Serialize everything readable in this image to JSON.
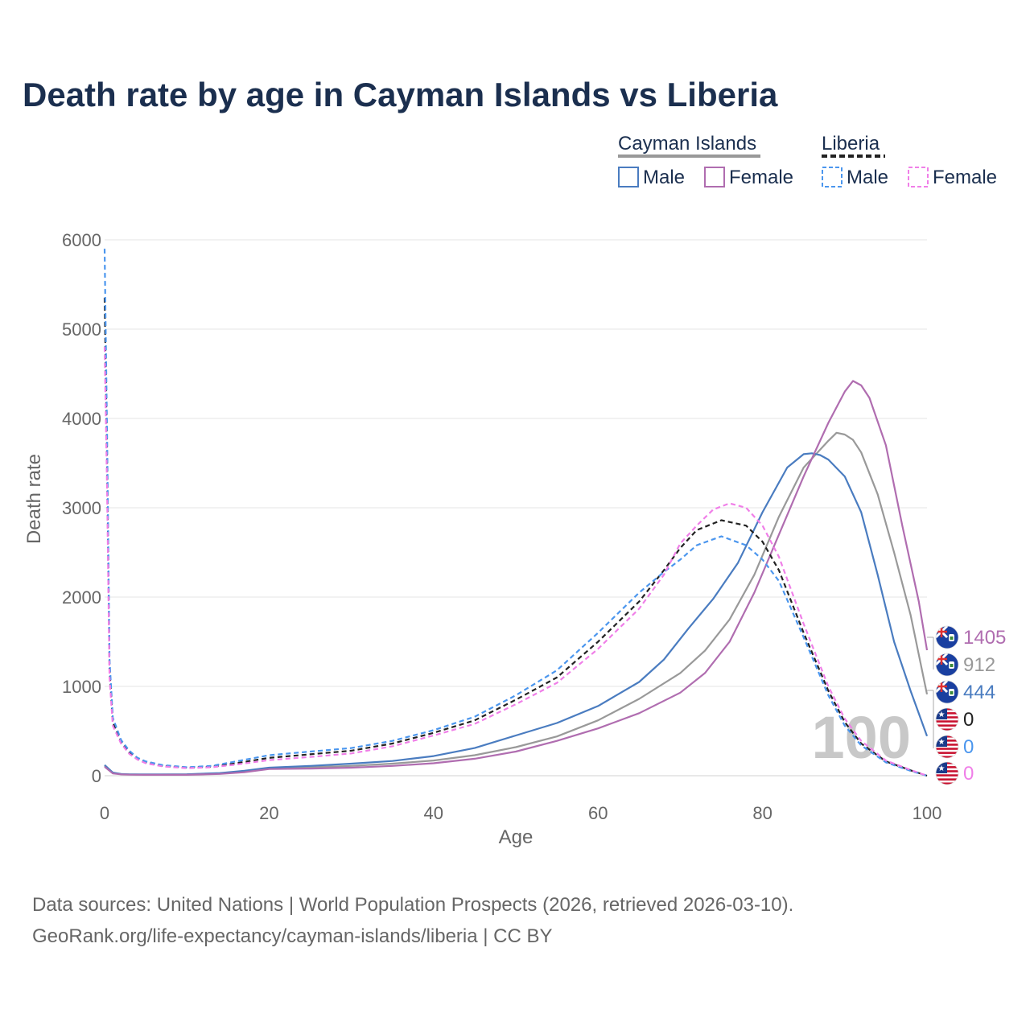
{
  "chart_data": {
    "type": "line",
    "title": "Death rate by age in Cayman Islands vs Liberia",
    "xlabel": "Age",
    "ylabel": "Death rate",
    "xlim": [
      0,
      100
    ],
    "ylim": [
      0,
      6000
    ],
    "xticks": [
      0,
      20,
      40,
      60,
      80,
      100
    ],
    "yticks": [
      0,
      1000,
      2000,
      3000,
      4000,
      5000,
      6000
    ],
    "grid": true,
    "legend_position": "top-right",
    "legend_groups": [
      {
        "label": "Cayman Islands",
        "style": "solid",
        "color": "#999999",
        "items": [
          {
            "label": "Male",
            "color": "#4a7cc0",
            "dashed": false
          },
          {
            "label": "Female",
            "color": "#b06db0",
            "dashed": false
          }
        ]
      },
      {
        "label": "Liberia",
        "style": "dashed",
        "color": "#222222",
        "items": [
          {
            "label": "Male",
            "color": "#4b96ee",
            "dashed": true
          },
          {
            "label": "Female",
            "color": "#f07fe8",
            "dashed": true
          }
        ]
      }
    ],
    "watermark": "100",
    "series": [
      {
        "name": "Cayman Islands Total",
        "country": "Cayman Islands",
        "color": "#999999",
        "dashed": false,
        "end_label": "912",
        "points": [
          [
            0,
            110
          ],
          [
            1,
            30
          ],
          [
            2,
            18
          ],
          [
            3,
            14
          ],
          [
            5,
            12
          ],
          [
            10,
            14
          ],
          [
            14,
            25
          ],
          [
            17,
            50
          ],
          [
            20,
            85
          ],
          [
            25,
            95
          ],
          [
            30,
            110
          ],
          [
            35,
            135
          ],
          [
            40,
            170
          ],
          [
            45,
            230
          ],
          [
            50,
            320
          ],
          [
            55,
            440
          ],
          [
            60,
            620
          ],
          [
            65,
            860
          ],
          [
            70,
            1150
          ],
          [
            73,
            1400
          ],
          [
            76,
            1750
          ],
          [
            79,
            2250
          ],
          [
            82,
            2900
          ],
          [
            85,
            3450
          ],
          [
            88,
            3750
          ],
          [
            89,
            3840
          ],
          [
            90,
            3820
          ],
          [
            91,
            3760
          ],
          [
            92,
            3620
          ],
          [
            94,
            3150
          ],
          [
            96,
            2500
          ],
          [
            98,
            1800
          ],
          [
            100,
            912
          ]
        ]
      },
      {
        "name": "Cayman Islands Male",
        "country": "Cayman Islands",
        "color": "#4a7cc0",
        "dashed": false,
        "end_label": "444",
        "points": [
          [
            0,
            120
          ],
          [
            1,
            35
          ],
          [
            2,
            20
          ],
          [
            3,
            15
          ],
          [
            5,
            14
          ],
          [
            10,
            16
          ],
          [
            14,
            30
          ],
          [
            17,
            55
          ],
          [
            20,
            90
          ],
          [
            25,
            110
          ],
          [
            30,
            135
          ],
          [
            35,
            165
          ],
          [
            40,
            220
          ],
          [
            45,
            310
          ],
          [
            50,
            450
          ],
          [
            55,
            590
          ],
          [
            60,
            780
          ],
          [
            65,
            1050
          ],
          [
            68,
            1300
          ],
          [
            71,
            1650
          ],
          [
            74,
            1980
          ],
          [
            77,
            2380
          ],
          [
            80,
            2950
          ],
          [
            83,
            3450
          ],
          [
            85,
            3600
          ],
          [
            86,
            3610
          ],
          [
            87,
            3590
          ],
          [
            88,
            3540
          ],
          [
            90,
            3350
          ],
          [
            92,
            2950
          ],
          [
            94,
            2250
          ],
          [
            96,
            1500
          ],
          [
            98,
            950
          ],
          [
            100,
            444
          ]
        ]
      },
      {
        "name": "Cayman Islands Female",
        "country": "Cayman Islands",
        "color": "#b06db0",
        "dashed": false,
        "end_label": "1405",
        "points": [
          [
            0,
            100
          ],
          [
            1,
            25
          ],
          [
            2,
            15
          ],
          [
            3,
            12
          ],
          [
            5,
            10
          ],
          [
            10,
            10
          ],
          [
            14,
            20
          ],
          [
            17,
            40
          ],
          [
            20,
            75
          ],
          [
            25,
            80
          ],
          [
            30,
            90
          ],
          [
            35,
            110
          ],
          [
            40,
            140
          ],
          [
            45,
            190
          ],
          [
            50,
            270
          ],
          [
            55,
            390
          ],
          [
            60,
            530
          ],
          [
            65,
            700
          ],
          [
            70,
            930
          ],
          [
            73,
            1150
          ],
          [
            76,
            1500
          ],
          [
            79,
            2050
          ],
          [
            82,
            2700
          ],
          [
            85,
            3350
          ],
          [
            88,
            3950
          ],
          [
            90,
            4300
          ],
          [
            91,
            4420
          ],
          [
            92,
            4370
          ],
          [
            93,
            4230
          ],
          [
            95,
            3700
          ],
          [
            97,
            2800
          ],
          [
            99,
            1950
          ],
          [
            100,
            1405
          ]
        ]
      },
      {
        "name": "Liberia Total",
        "country": "Liberia",
        "color": "#222222",
        "dashed": true,
        "end_label": "0",
        "points": [
          [
            0,
            5350
          ],
          [
            0.3,
            3500
          ],
          [
            0.6,
            1200
          ],
          [
            1,
            600
          ],
          [
            2,
            380
          ],
          [
            3,
            260
          ],
          [
            4,
            190
          ],
          [
            5,
            150
          ],
          [
            7,
            110
          ],
          [
            10,
            90
          ],
          [
            13,
            100
          ],
          [
            16,
            140
          ],
          [
            20,
            200
          ],
          [
            25,
            240
          ],
          [
            30,
            280
          ],
          [
            35,
            360
          ],
          [
            40,
            480
          ],
          [
            45,
            620
          ],
          [
            50,
            850
          ],
          [
            55,
            1100
          ],
          [
            60,
            1500
          ],
          [
            65,
            1950
          ],
          [
            68,
            2300
          ],
          [
            70,
            2550
          ],
          [
            72,
            2750
          ],
          [
            75,
            2860
          ],
          [
            78,
            2800
          ],
          [
            80,
            2620
          ],
          [
            82,
            2300
          ],
          [
            85,
            1600
          ],
          [
            88,
            950
          ],
          [
            90,
            600
          ],
          [
            92,
            360
          ],
          [
            95,
            160
          ],
          [
            98,
            60
          ],
          [
            100,
            0
          ]
        ]
      },
      {
        "name": "Liberia Male",
        "country": "Liberia",
        "color": "#4b96ee",
        "dashed": true,
        "end_label": "0",
        "points": [
          [
            0,
            5900
          ],
          [
            0.3,
            3800
          ],
          [
            0.6,
            1300
          ],
          [
            1,
            650
          ],
          [
            2,
            400
          ],
          [
            3,
            280
          ],
          [
            4,
            200
          ],
          [
            5,
            160
          ],
          [
            7,
            120
          ],
          [
            10,
            95
          ],
          [
            13,
            110
          ],
          [
            16,
            160
          ],
          [
            20,
            230
          ],
          [
            25,
            270
          ],
          [
            30,
            310
          ],
          [
            35,
            390
          ],
          [
            40,
            510
          ],
          [
            45,
            660
          ],
          [
            50,
            900
          ],
          [
            55,
            1180
          ],
          [
            60,
            1600
          ],
          [
            65,
            2050
          ],
          [
            68,
            2280
          ],
          [
            70,
            2420
          ],
          [
            72,
            2580
          ],
          [
            75,
            2680
          ],
          [
            78,
            2580
          ],
          [
            80,
            2420
          ],
          [
            82,
            2180
          ],
          [
            85,
            1550
          ],
          [
            88,
            900
          ],
          [
            90,
            560
          ],
          [
            92,
            340
          ],
          [
            95,
            150
          ],
          [
            98,
            55
          ],
          [
            100,
            0
          ]
        ]
      },
      {
        "name": "Liberia Female",
        "country": "Liberia",
        "color": "#f07fe8",
        "dashed": true,
        "end_label": "0",
        "points": [
          [
            0,
            4800
          ],
          [
            0.3,
            3200
          ],
          [
            0.6,
            1100
          ],
          [
            1,
            560
          ],
          [
            2,
            360
          ],
          [
            3,
            245
          ],
          [
            4,
            180
          ],
          [
            5,
            140
          ],
          [
            7,
            105
          ],
          [
            10,
            85
          ],
          [
            13,
            95
          ],
          [
            16,
            125
          ],
          [
            20,
            175
          ],
          [
            25,
            210
          ],
          [
            30,
            250
          ],
          [
            35,
            330
          ],
          [
            40,
            450
          ],
          [
            45,
            580
          ],
          [
            50,
            800
          ],
          [
            55,
            1040
          ],
          [
            60,
            1420
          ],
          [
            65,
            1870
          ],
          [
            68,
            2250
          ],
          [
            70,
            2600
          ],
          [
            72,
            2800
          ],
          [
            74,
            2980
          ],
          [
            76,
            3050
          ],
          [
            78,
            3000
          ],
          [
            80,
            2800
          ],
          [
            82,
            2450
          ],
          [
            85,
            1700
          ],
          [
            88,
            1000
          ],
          [
            90,
            640
          ],
          [
            92,
            390
          ],
          [
            95,
            170
          ],
          [
            98,
            65
          ],
          [
            100,
            0
          ]
        ]
      }
    ],
    "end_labels_order": [
      {
        "value": "1405",
        "color": "#b06db0",
        "flag": "cayman"
      },
      {
        "value": "912",
        "color": "#999999",
        "flag": "cayman"
      },
      {
        "value": "444",
        "color": "#4a7cc0",
        "flag": "cayman"
      },
      {
        "value": "0",
        "color": "#222222",
        "flag": "liberia"
      },
      {
        "value": "0",
        "color": "#4b96ee",
        "flag": "liberia"
      },
      {
        "value": "0",
        "color": "#f07fe8",
        "flag": "liberia"
      }
    ]
  },
  "source": {
    "line1": "Data sources: United Nations | World Population Prospects (2026, retrieved 2026-03-10).",
    "line2": "GeoRank.org/life-expectancy/cayman-islands/liberia | CC BY"
  }
}
